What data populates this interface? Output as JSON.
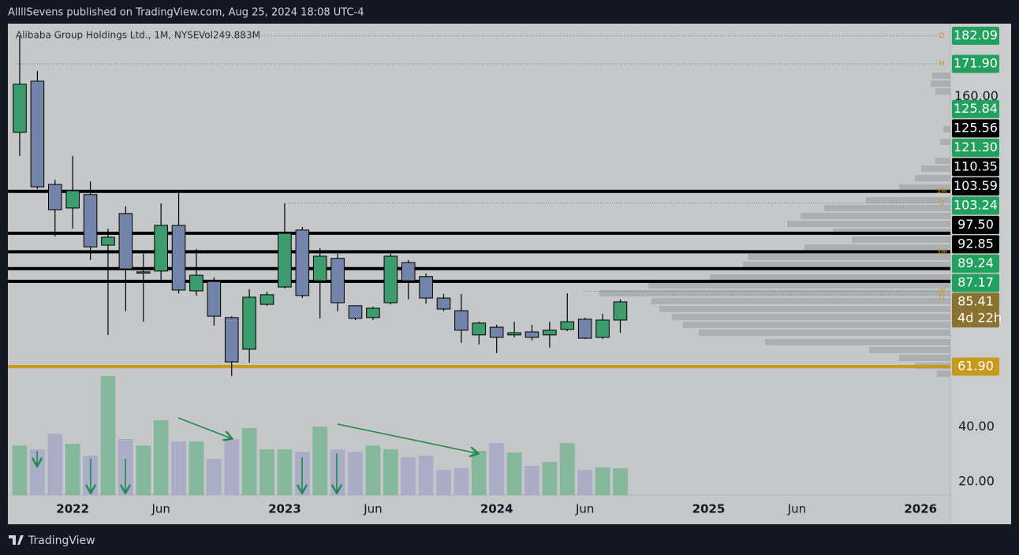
{
  "header": "AllllSevens published on TradingView.com, Aug 25, 2024 18:08 UTC-4",
  "footer": "TradingView",
  "chart_data": {
    "type": "candlestick",
    "title": "Alibaba Group Holdings Ltd., 1M, NYSE",
    "volume_legend": "Vol249.883M",
    "categories": [
      "2021-10",
      "2021-11",
      "2021-12",
      "2022-01",
      "2022-02",
      "2022-03",
      "2022-04",
      "2022-05",
      "2022-06",
      "2022-07",
      "2022-08",
      "2022-09",
      "2022-10",
      "2022-11",
      "2022-12",
      "2023-01",
      "2023-02",
      "2023-03",
      "2023-04",
      "2023-05",
      "2023-06",
      "2023-07",
      "2023-08",
      "2023-09",
      "2023-10",
      "2023-11",
      "2023-12",
      "2024-01",
      "2024-02",
      "2024-03",
      "2024-04",
      "2024-05",
      "2024-06",
      "2024-07",
      "2024-08"
    ],
    "open": [
      147.0,
      165.6,
      128.1,
      119.5,
      124.4,
      106.0,
      117.5,
      96.0,
      96.6,
      113.2,
      89.4,
      92.8,
      79.7,
      68.2,
      84.5,
      90.8,
      111.5,
      93.1,
      101.2,
      84.0,
      79.7,
      85.1,
      99.7,
      94.6,
      86.8,
      82.2,
      73.4,
      76.2,
      73.4,
      74.5,
      73.4,
      75.4,
      79.1,
      72.5,
      78.8
    ],
    "high": [
      182.2,
      169.3,
      129.8,
      138.4,
      129.2,
      112.0,
      120.1,
      102.9,
      121.2,
      125.8,
      104.6,
      94.3,
      80.2,
      90.0,
      89.1,
      121.2,
      112.6,
      104.9,
      102.9,
      84.0,
      83.7,
      102.9,
      100.6,
      95.7,
      88.3,
      88.3,
      78.2,
      77.1,
      78.2,
      77.1,
      78.2,
      88.5,
      79.7,
      81.1,
      86.3
    ],
    "low": [
      138.4,
      126.4,
      109.2,
      112.0,
      100.6,
      73.4,
      82.0,
      78.2,
      93.1,
      88.5,
      87.7,
      76.8,
      58.5,
      63.3,
      84.0,
      90.3,
      86.8,
      79.4,
      82.0,
      78.8,
      78.8,
      84.5,
      86.3,
      84.8,
      82.0,
      70.5,
      69.9,
      66.8,
      72.5,
      71.4,
      68.8,
      74.8,
      71.9,
      71.9,
      74.2
    ],
    "close": [
      164.5,
      127.2,
      118.9,
      125.8,
      105.4,
      108.9,
      97.4,
      96.3,
      113.2,
      89.7,
      95.1,
      80.2,
      63.6,
      87.1,
      88.0,
      110.3,
      87.7,
      102.0,
      85.1,
      79.4,
      83.1,
      102.0,
      93.1,
      86.8,
      82.8,
      75.1,
      77.7,
      72.5,
      74.2,
      72.5,
      75.1,
      78.2,
      72.2,
      78.8,
      85.41
    ],
    "volume": [
      463,
      426,
      573,
      478,
      368,
      1110,
      522,
      463,
      698,
      500,
      500,
      338,
      522,
      625,
      426,
      426,
      404,
      639,
      426,
      404,
      463,
      426,
      353,
      368,
      235,
      250,
      412,
      485,
      397,
      272,
      309,
      485,
      235,
      257,
      249.883
    ],
    "up_color": "#3d9c6e",
    "down_color": "#7384ab",
    "ylim": [
      15.2,
      186.5
    ],
    "xlim": [
      "2021-09",
      "2026-03"
    ],
    "yticks": [
      {
        "value": 160,
        "label": "160.00"
      },
      {
        "value": 40,
        "label": "40.00"
      },
      {
        "value": 20,
        "label": "20.00"
      }
    ],
    "xticks": [
      {
        "value": "2022-01",
        "label": "2022"
      },
      {
        "value": "2022-06",
        "label": "Jun"
      },
      {
        "value": "2023-01",
        "label": "2023"
      },
      {
        "value": "2023-06",
        "label": "Jun"
      },
      {
        "value": "2024-01",
        "label": "2024"
      },
      {
        "value": "2024-06",
        "label": "Jun"
      },
      {
        "value": "2025-01",
        "label": "2025"
      },
      {
        "value": "2025-06",
        "label": "Jun"
      },
      {
        "value": "2026-01",
        "label": "2026"
      }
    ],
    "levels": [
      {
        "value": 182.09,
        "label": "182.09",
        "color": "#22a05e",
        "line": "dotted",
        "tag": "D"
      },
      {
        "value": 171.9,
        "label": "171.90",
        "color": "#22a05e",
        "line": "dotted",
        "tag": "M"
      },
      {
        "value": 125.84,
        "label": "125.84",
        "color": "#22a05e"
      },
      {
        "value": 125.56,
        "label": "125.56",
        "color": "#000000",
        "line": "solid",
        "tag": "3M"
      },
      {
        "value": 121.3,
        "label": "121.30",
        "color": "#22a05e",
        "line": "dotted",
        "tag": "D"
      },
      {
        "value": 110.35,
        "label": "110.35",
        "color": "#000000",
        "line": "solid"
      },
      {
        "value": 103.59,
        "label": "103.59",
        "color": "#000000",
        "line": "solid",
        "tag": "3M"
      },
      {
        "value": 103.24,
        "label": "103.24",
        "color": "#22a05e"
      },
      {
        "value": 97.5,
        "label": "97.50",
        "color": "#000000",
        "line": "solid"
      },
      {
        "value": 92.85,
        "label": "92.85",
        "color": "#000000",
        "line": "solid"
      },
      {
        "value": 89.24,
        "label": "89.24",
        "color": "#22a05e",
        "line": "dotted",
        "tag": "W"
      },
      {
        "value": 87.17,
        "label": "87.17",
        "color": "#22a05e",
        "tag": "D"
      },
      {
        "value": 85.41,
        "label": "85.41",
        "color": "#8a7330",
        "countdown": "4d 22h"
      },
      {
        "value": 61.9,
        "label": "61.90",
        "color": "#c79a1c",
        "line": "gold"
      }
    ]
  }
}
